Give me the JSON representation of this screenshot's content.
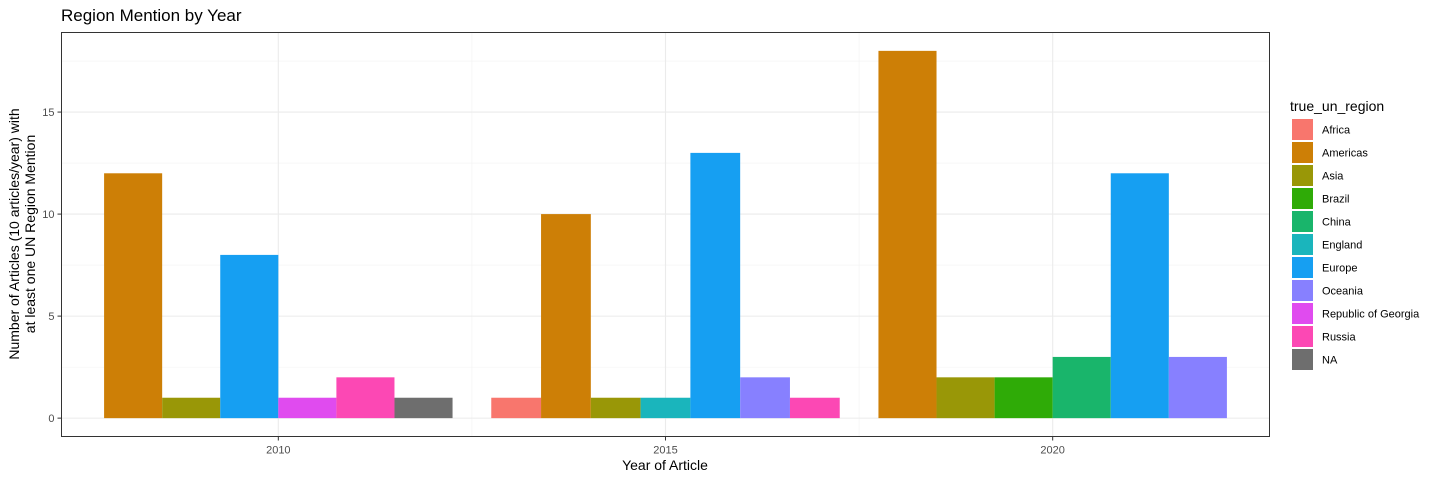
{
  "chart_data": {
    "type": "bar",
    "title": "Region Mention by Year",
    "xlabel": "Year of Article",
    "ylabel_lines": [
      "Number of Articles (10 articles/year) with",
      "at least one UN Region Mention"
    ],
    "xlim": [
      2007.2,
      2022.8
    ],
    "ylim": [
      -0.9,
      18.9
    ],
    "xticks": [
      2010,
      2015,
      2020
    ],
    "yticks": [
      0,
      5,
      10,
      15
    ],
    "yminor": [
      2.5,
      7.5,
      12.5,
      17.5
    ],
    "xminor": [
      2012.5,
      2017.5
    ],
    "grid": true,
    "legend": {
      "title": "true_un_region",
      "placement": "right"
    },
    "series": [
      {
        "name": "Africa",
        "color": "#F8766D"
      },
      {
        "name": "Americas",
        "color": "#CD7F06"
      },
      {
        "name": "Asia",
        "color": "#999707"
      },
      {
        "name": "Brazil",
        "color": "#2FAB07"
      },
      {
        "name": "China",
        "color": "#19B56B"
      },
      {
        "name": "England",
        "color": "#1AB5BC"
      },
      {
        "name": "Europe",
        "color": "#169FF2"
      },
      {
        "name": "Oceania",
        "color": "#8780FF"
      },
      {
        "name": "Republic of Georgia",
        "color": "#E04BEF"
      },
      {
        "name": "Russia",
        "color": "#FC48B4"
      },
      {
        "name": "NA",
        "color": "#6E6E6E"
      }
    ],
    "groups": [
      {
        "year": 2010,
        "bars": [
          {
            "region": "Americas",
            "value": 12
          },
          {
            "region": "Asia",
            "value": 1
          },
          {
            "region": "Europe",
            "value": 8
          },
          {
            "region": "Republic of Georgia",
            "value": 1
          },
          {
            "region": "Russia",
            "value": 2
          },
          {
            "region": "NA",
            "value": 1
          }
        ]
      },
      {
        "year": 2015,
        "bars": [
          {
            "region": "Africa",
            "value": 1
          },
          {
            "region": "Americas",
            "value": 10
          },
          {
            "region": "Asia",
            "value": 1
          },
          {
            "region": "England",
            "value": 1
          },
          {
            "region": "Europe",
            "value": 13
          },
          {
            "region": "Oceania",
            "value": 2
          },
          {
            "region": "Russia",
            "value": 1
          }
        ]
      },
      {
        "year": 2020,
        "bars": [
          {
            "region": "Americas",
            "value": 18
          },
          {
            "region": "Asia",
            "value": 2
          },
          {
            "region": "Brazil",
            "value": 2
          },
          {
            "region": "China",
            "value": 3
          },
          {
            "region": "Europe",
            "value": 12
          },
          {
            "region": "Oceania",
            "value": 3
          }
        ]
      }
    ],
    "dodge_width": 4.5
  }
}
